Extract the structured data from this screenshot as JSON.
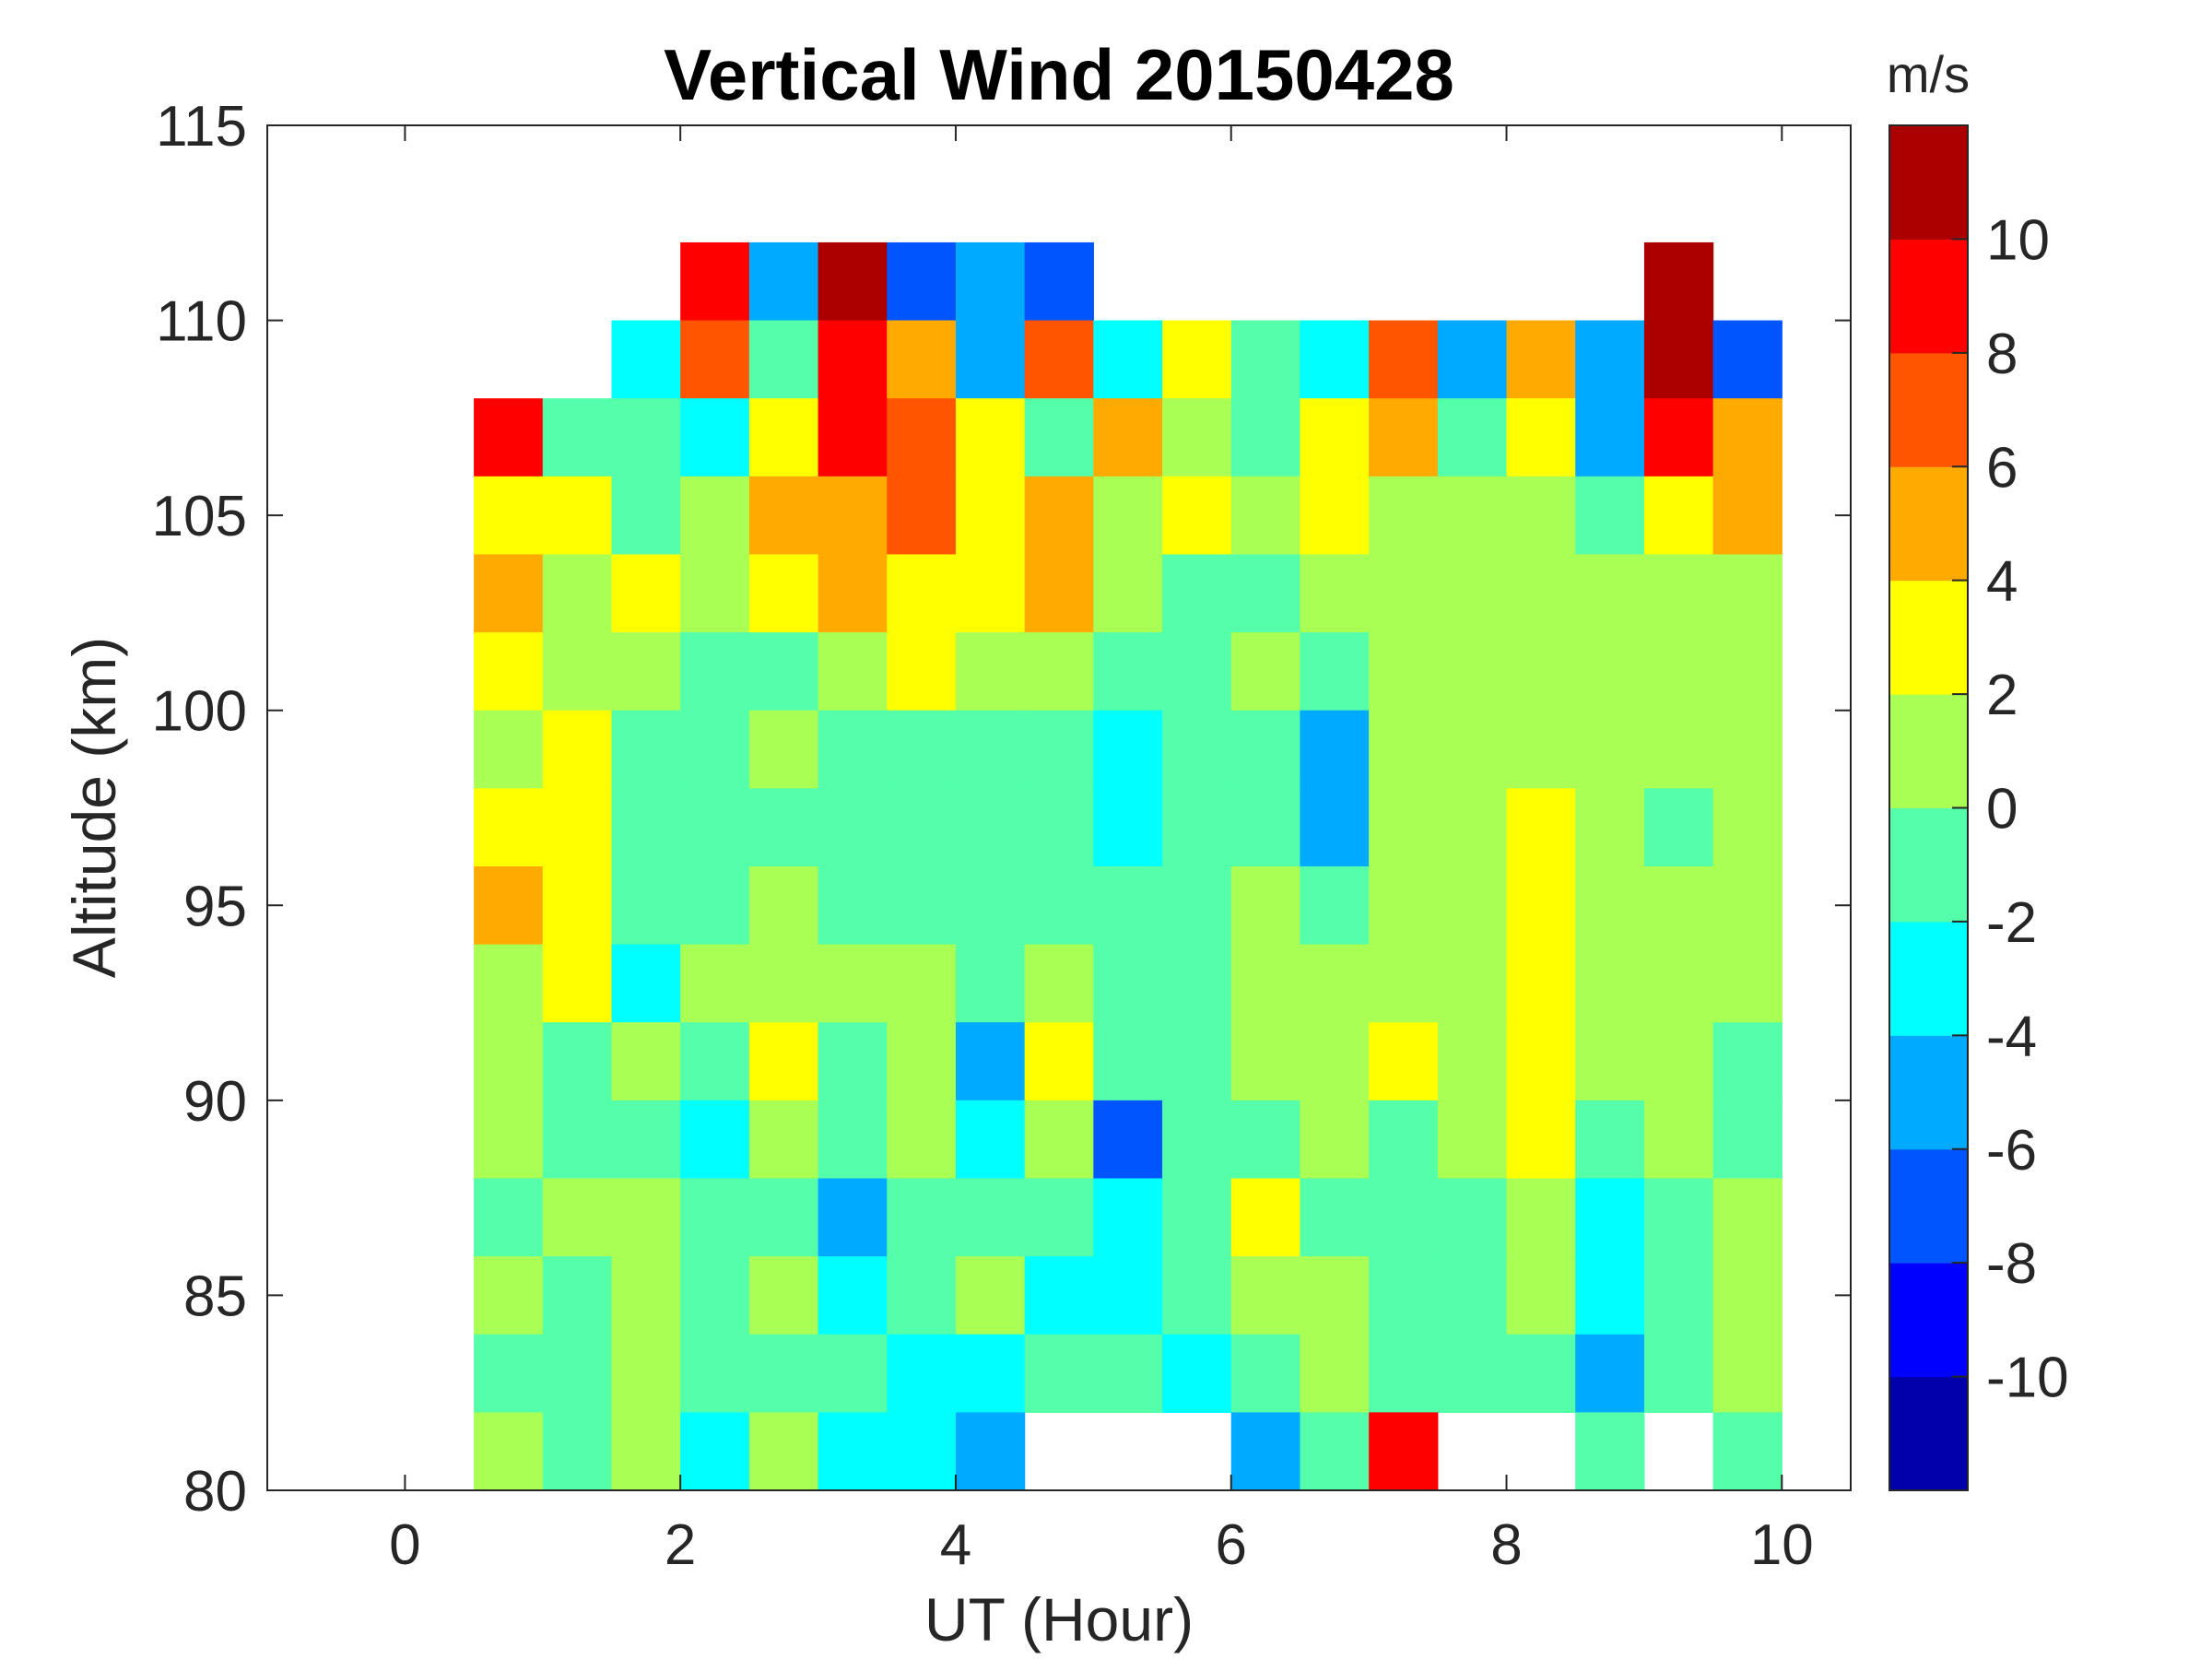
{
  "chart_data": {
    "type": "heatmap",
    "subtype": "filled-contour",
    "title": "Vertical Wind 20150428",
    "xlabel": "UT (Hour)",
    "ylabel": "Altitude (km)",
    "xlim": [
      -1,
      10.5
    ],
    "ylim": [
      80,
      115
    ],
    "xticks": [
      0,
      2,
      4,
      6,
      8,
      10
    ],
    "yticks": [
      80,
      85,
      90,
      95,
      100,
      105,
      110,
      115
    ],
    "grid": false,
    "x": [
      0.75,
      1.25,
      1.75,
      2.25,
      2.75,
      3.25,
      3.75,
      4.25,
      4.75,
      5.25,
      5.75,
      6.25,
      6.75,
      7.25,
      7.75,
      8.25,
      8.75,
      9.25,
      9.75
    ],
    "y": [
      111,
      109,
      107,
      105,
      103,
      101,
      99,
      97,
      95,
      93,
      91,
      89,
      87,
      85,
      83,
      81
    ],
    "cell_size": {
      "x_hours": 0.5,
      "y_km": 2
    },
    "z": [
      [
        null,
        null,
        null,
        8,
        -6,
        10,
        -8,
        -6,
        -8,
        null,
        null,
        null,
        null,
        null,
        null,
        null,
        null,
        10,
        null
      ],
      [
        null,
        null,
        -4,
        6,
        -2,
        8,
        4,
        -6,
        6,
        -4,
        2,
        -2,
        -4,
        6,
        -6,
        4,
        -6,
        10,
        -8
      ],
      [
        8,
        -2,
        -2,
        -4,
        2,
        8,
        6,
        2,
        -2,
        4,
        0,
        -2,
        2,
        4,
        -2,
        2,
        -6,
        8,
        4
      ],
      [
        2,
        2,
        -2,
        0,
        4,
        4,
        6,
        2,
        4,
        0,
        2,
        0,
        2,
        1,
        0,
        1,
        -2,
        2,
        4
      ],
      [
        4,
        1,
        2,
        0,
        2,
        4,
        2,
        3,
        4,
        0,
        -1,
        -1,
        1,
        1,
        1,
        1,
        1,
        1,
        1
      ],
      [
        3,
        1,
        0,
        -1,
        -1,
        1,
        3,
        0,
        1,
        -1,
        -1,
        0,
        -1,
        1,
        1,
        1,
        1,
        0,
        1
      ],
      [
        1,
        3,
        -1,
        -1,
        0,
        -1,
        -1,
        -1,
        -1,
        -2.5,
        -1,
        -1,
        -6,
        1,
        1,
        1,
        1,
        1,
        1
      ],
      [
        3,
        3,
        -1,
        -1,
        -1,
        -1,
        -1,
        -1,
        -1,
        -3,
        -1,
        -1,
        -5,
        1,
        1,
        2,
        1,
        -1,
        1
      ],
      [
        4,
        3,
        -1,
        -1,
        1,
        -1,
        -1,
        -1,
        -1,
        -1,
        -1,
        0,
        -2,
        1,
        1,
        3,
        1,
        1,
        1
      ],
      [
        1,
        3,
        -3,
        1,
        1,
        1,
        1,
        -1,
        1,
        -1,
        -1,
        1,
        1,
        1,
        1,
        3,
        1,
        1,
        1
      ],
      [
        1,
        -1,
        1,
        -1,
        3,
        -1,
        1,
        -5,
        3,
        -1,
        -1,
        1,
        1,
        3,
        1,
        3,
        1,
        1,
        -1
      ],
      [
        1,
        -1,
        -1,
        -3,
        1,
        -1,
        1,
        -3,
        1,
        -7,
        -1,
        -1,
        1,
        -1,
        1,
        3,
        -1,
        1,
        -1
      ],
      [
        -1,
        1,
        1,
        -1,
        -1,
        -5,
        -1,
        -1,
        -1,
        -4,
        -1,
        3,
        -1,
        -1,
        -1,
        1,
        -3,
        -1,
        1
      ],
      [
        1,
        -1,
        1,
        -1,
        1,
        -3,
        -1,
        1,
        -3,
        -3,
        -1,
        1,
        1,
        -1,
        -1,
        1,
        -3,
        -1,
        1
      ],
      [
        -1,
        -1,
        1,
        -1,
        -1,
        -1,
        -3,
        -4,
        -1,
        -1,
        -3,
        -1,
        1,
        -1,
        -1,
        -1,
        -5,
        -1,
        1
      ],
      [
        1,
        -1,
        1,
        -3,
        1,
        -3,
        -4,
        -6,
        null,
        null,
        null,
        -6,
        -2,
        8,
        null,
        null,
        -1,
        null,
        -2
      ]
    ],
    "colorbar": {
      "label": "m/s",
      "levels": [
        -12,
        -10,
        -8,
        -6,
        -4,
        -2,
        0,
        2,
        4,
        6,
        8,
        10,
        12
      ],
      "ticks": [
        -10,
        -8,
        -6,
        -4,
        -2,
        0,
        2,
        4,
        6,
        8,
        10
      ],
      "colors": [
        "#0000AA",
        "#0000FF",
        "#0055FF",
        "#00AAFF",
        "#00FFFF",
        "#55FFAA",
        "#AAFF55",
        "#FFFF00",
        "#FFAA00",
        "#FF5500",
        "#FF0000",
        "#AA0000"
      ]
    }
  }
}
